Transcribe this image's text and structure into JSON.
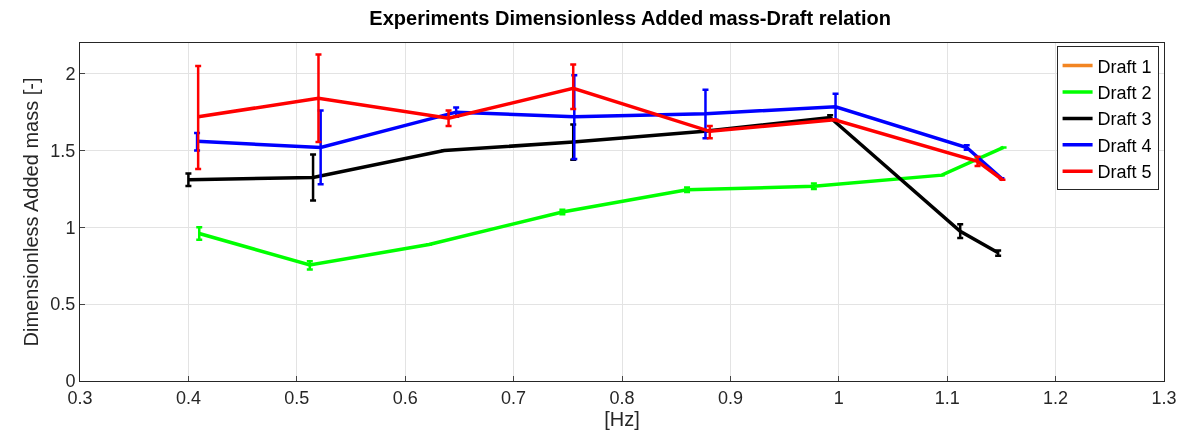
{
  "chart_data": {
    "type": "line",
    "title": "Experiments Dimensionless Added mass-Draft relation",
    "xlabel": "[Hz]",
    "ylabel": "Dimensionless Added mass [-]",
    "xlim": [
      0.3,
      1.3
    ],
    "xticks": [
      0.3,
      0.4,
      0.5,
      0.6,
      0.7,
      0.8,
      0.9,
      1,
      1.1,
      1.2,
      1.3
    ],
    "ylim": [
      0,
      2.2
    ],
    "yticks": [
      0,
      0.5,
      1,
      1.5,
      2
    ],
    "grid": true,
    "legend": "top right",
    "line_style": "solid",
    "series": [
      {
        "name": "Draft 1",
        "color": "#f28522"
      },
      {
        "name": "Draft 2",
        "color": "#00ff00",
        "x": [
          0.41,
          0.512,
          0.622,
          0.745,
          0.86,
          0.977,
          1.095,
          1.152
        ],
        "values": [
          0.96,
          0.755,
          0.888,
          1.1,
          1.245,
          1.267,
          1.34,
          1.52
        ],
        "errors": [
          [
            0.92,
            1.0
          ],
          [
            0.725,
            0.78
          ],
          null,
          [
            1.085,
            1.115
          ],
          [
            1.23,
            1.26
          ],
          [
            1.25,
            1.285
          ],
          null,
          null
        ]
      },
      {
        "name": "Draft 3",
        "color": "#000000",
        "x": [
          0.4,
          0.515,
          0.636,
          0.755,
          0.876,
          0.992,
          1.112,
          1.147
        ],
        "values": [
          1.31,
          1.325,
          1.5,
          1.555,
          1.625,
          1.715,
          0.975,
          0.835
        ],
        "errors": [
          [
            1.27,
            1.35
          ],
          [
            1.175,
            1.475
          ],
          null,
          [
            1.44,
            1.67
          ],
          null,
          [
            1.7,
            1.73
          ],
          [
            0.93,
            1.02
          ],
          [
            0.815,
            0.85
          ]
        ]
      },
      {
        "name": "Draft 4",
        "color": "#0000ff",
        "x": [
          0.408,
          0.522,
          0.647,
          0.756,
          0.877,
          0.997,
          1.118,
          1.15
        ],
        "values": [
          1.56,
          1.52,
          1.75,
          1.72,
          1.74,
          1.785,
          1.52,
          1.32
        ],
        "errors": [
          [
            1.5,
            1.615
          ],
          [
            1.28,
            1.76
          ],
          [
            1.72,
            1.78
          ],
          [
            1.445,
            1.99
          ],
          [
            1.58,
            1.895
          ],
          [
            1.7,
            1.87
          ],
          [
            1.505,
            1.535
          ],
          null
        ]
      },
      {
        "name": "Draft 5",
        "color": "#ff0000",
        "x": [
          0.409,
          0.52,
          0.64,
          0.755,
          0.881,
          0.996,
          1.128,
          1.151
        ],
        "values": [
          1.72,
          1.84,
          1.71,
          1.905,
          1.625,
          1.7,
          1.43,
          1.31
        ],
        "errors": [
          [
            1.38,
            2.05
          ],
          [
            1.555,
            2.125
          ],
          [
            1.66,
            1.76
          ],
          [
            1.77,
            2.06
          ],
          [
            1.58,
            1.66
          ],
          null,
          [
            1.4,
            1.46
          ],
          null
        ]
      }
    ]
  }
}
